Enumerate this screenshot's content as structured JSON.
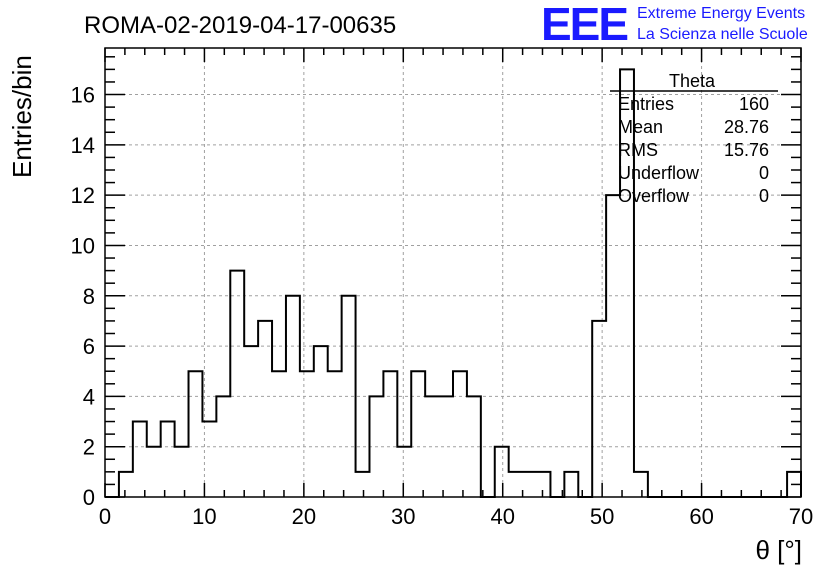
{
  "header": {
    "title": "ROMA-02-2019-04-17-00635",
    "logo_text": "EEE",
    "logo_line1": "Extreme Energy Events",
    "logo_line2": "La Scienza nelle Scuole",
    "logo_color": "#1a1aff"
  },
  "chart_data": {
    "type": "bar",
    "histogram": true,
    "bin_width": 1.4,
    "bins": [
      {
        "x": 0,
        "count": 0
      },
      {
        "x": 1.4,
        "count": 1
      },
      {
        "x": 2.8,
        "count": 3
      },
      {
        "x": 4.2,
        "count": 2
      },
      {
        "x": 5.6,
        "count": 3
      },
      {
        "x": 7.0,
        "count": 2
      },
      {
        "x": 8.4,
        "count": 5
      },
      {
        "x": 9.8,
        "count": 3
      },
      {
        "x": 11.2,
        "count": 4
      },
      {
        "x": 12.6,
        "count": 9
      },
      {
        "x": 14.0,
        "count": 6
      },
      {
        "x": 15.4,
        "count": 7
      },
      {
        "x": 16.8,
        "count": 5
      },
      {
        "x": 18.2,
        "count": 8
      },
      {
        "x": 19.6,
        "count": 5
      },
      {
        "x": 21.0,
        "count": 6
      },
      {
        "x": 22.4,
        "count": 5
      },
      {
        "x": 23.8,
        "count": 8
      },
      {
        "x": 25.2,
        "count": 1
      },
      {
        "x": 26.6,
        "count": 4
      },
      {
        "x": 28.0,
        "count": 5
      },
      {
        "x": 29.4,
        "count": 2
      },
      {
        "x": 30.8,
        "count": 5
      },
      {
        "x": 32.2,
        "count": 4
      },
      {
        "x": 33.6,
        "count": 4
      },
      {
        "x": 35.0,
        "count": 5
      },
      {
        "x": 36.4,
        "count": 4
      },
      {
        "x": 37.8,
        "count": 0
      },
      {
        "x": 39.2,
        "count": 2
      },
      {
        "x": 40.6,
        "count": 1
      },
      {
        "x": 42.0,
        "count": 1
      },
      {
        "x": 43.4,
        "count": 1
      },
      {
        "x": 44.8,
        "count": 0
      },
      {
        "x": 46.2,
        "count": 1
      },
      {
        "x": 47.6,
        "count": 0
      },
      {
        "x": 49.0,
        "count": 7
      },
      {
        "x": 50.4,
        "count": 12
      },
      {
        "x": 51.8,
        "count": 17
      },
      {
        "x": 53.2,
        "count": 1
      },
      {
        "x": 54.6,
        "count": 0
      },
      {
        "x": 56.0,
        "count": 0
      },
      {
        "x": 57.4,
        "count": 0
      },
      {
        "x": 58.8,
        "count": 0
      },
      {
        "x": 60.2,
        "count": 0
      },
      {
        "x": 61.6,
        "count": 0
      },
      {
        "x": 63.0,
        "count": 0
      },
      {
        "x": 64.4,
        "count": 0
      },
      {
        "x": 65.8,
        "count": 0
      },
      {
        "x": 67.2,
        "count": 0
      },
      {
        "x": 68.6,
        "count": 1
      }
    ],
    "xlabel": "θ [°]",
    "ylabel": "Entries/bin",
    "xlim": [
      0,
      70
    ],
    "ylim": [
      0,
      17.85
    ],
    "x_ticks": [
      {
        "value": 0,
        "label": "0"
      },
      {
        "value": 10,
        "label": "10"
      },
      {
        "value": 20,
        "label": "20"
      },
      {
        "value": 30,
        "label": "30"
      },
      {
        "value": 40,
        "label": "40"
      },
      {
        "value": 50,
        "label": "50"
      },
      {
        "value": 60,
        "label": "60"
      },
      {
        "value": 70,
        "label": "70"
      }
    ],
    "y_ticks": [
      {
        "value": 0,
        "label": "0"
      },
      {
        "value": 2,
        "label": "2"
      },
      {
        "value": 4,
        "label": "4"
      },
      {
        "value": 6,
        "label": "6"
      },
      {
        "value": 8,
        "label": "8"
      },
      {
        "value": 10,
        "label": "10"
      },
      {
        "value": 12,
        "label": "12"
      },
      {
        "value": 14,
        "label": "14"
      },
      {
        "value": 16,
        "label": "16"
      }
    ],
    "grid": true,
    "stats_box": {
      "title": "Theta",
      "placement": "top-right",
      "rows": [
        {
          "label": "Entries",
          "value": "160"
        },
        {
          "label": "Mean",
          "value": "28.76"
        },
        {
          "label": "RMS",
          "value": "15.76"
        },
        {
          "label": "Underflow",
          "value": "0"
        },
        {
          "label": "Overflow",
          "value": "0"
        }
      ]
    }
  }
}
